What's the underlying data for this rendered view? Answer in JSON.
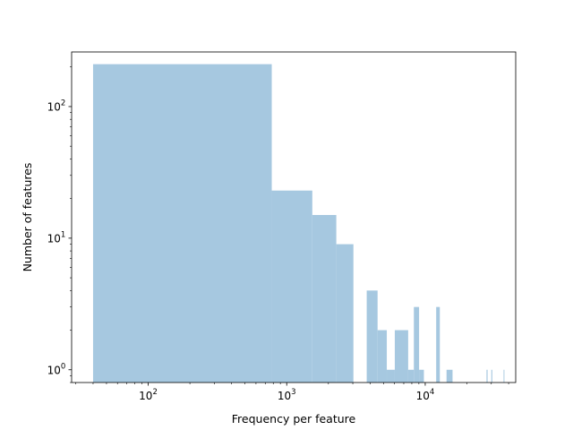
{
  "chart_data": {
    "type": "bar",
    "xlabel": "Frequency per feature",
    "ylabel": "Number of features",
    "xscale": "log",
    "yscale": "log",
    "xlim": [
      28,
      45000
    ],
    "ylim": [
      0.8,
      260
    ],
    "x_ticks": [
      {
        "value": 100,
        "base": "10",
        "exp": "2"
      },
      {
        "value": 1000,
        "base": "10",
        "exp": "3"
      },
      {
        "value": 10000,
        "base": "10",
        "exp": "4"
      }
    ],
    "y_ticks": [
      {
        "value": 1,
        "base": "10",
        "exp": "0"
      },
      {
        "value": 10,
        "base": "10",
        "exp": "1"
      },
      {
        "value": 100,
        "base": "10",
        "exp": "2"
      }
    ],
    "bar_color": "#a6c8e0",
    "bins": [
      {
        "x0": 40,
        "x1": 780,
        "count": 210
      },
      {
        "x0": 780,
        "x1": 1530,
        "count": 23
      },
      {
        "x0": 1530,
        "x1": 2280,
        "count": 15
      },
      {
        "x0": 2280,
        "x1": 3030,
        "count": 9
      },
      {
        "x0": 3780,
        "x1": 4530,
        "count": 4
      },
      {
        "x0": 4530,
        "x1": 5280,
        "count": 2
      },
      {
        "x0": 5280,
        "x1": 6030,
        "count": 1
      },
      {
        "x0": 6030,
        "x1": 7530,
        "count": 2
      },
      {
        "x0": 7530,
        "x1": 8280,
        "count": 1
      },
      {
        "x0": 8280,
        "x1": 9030,
        "count": 3
      },
      {
        "x0": 9030,
        "x1": 9780,
        "count": 1
      },
      {
        "x0": 12000,
        "x1": 12750,
        "count": 3
      },
      {
        "x0": 14250,
        "x1": 15750,
        "count": 1
      },
      {
        "x0": 27700,
        "x1": 28200,
        "count": 1
      },
      {
        "x0": 30000,
        "x1": 30500,
        "count": 1
      },
      {
        "x0": 36800,
        "x1": 37300,
        "count": 1
      }
    ]
  }
}
